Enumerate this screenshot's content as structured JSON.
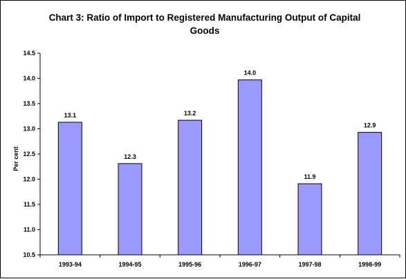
{
  "chart_data": {
    "type": "bar",
    "title_line1": "Chart 3: Ratio of Import to Registered Manufacturing Output of Capital",
    "title_line2": "Goods",
    "xlabel": "",
    "ylabel": "Per cent",
    "categories": [
      "1993-94",
      "1994-95",
      "1995-96",
      "1996-97",
      "1997-98",
      "1998-99"
    ],
    "values": [
      13.13,
      12.31,
      13.17,
      13.97,
      11.91,
      12.93
    ],
    "data_labels": [
      "13.1",
      "12.3",
      "13.2",
      "14.0",
      "11.9",
      "12.9"
    ],
    "ylim": [
      10.5,
      14.5
    ],
    "yticks": [
      "10.5",
      "11.0",
      "11.5",
      "12.0",
      "12.5",
      "13.0",
      "13.5",
      "14.0",
      "14.5"
    ],
    "bar_color": "#9999ff",
    "grid": false,
    "legend": "none"
  }
}
